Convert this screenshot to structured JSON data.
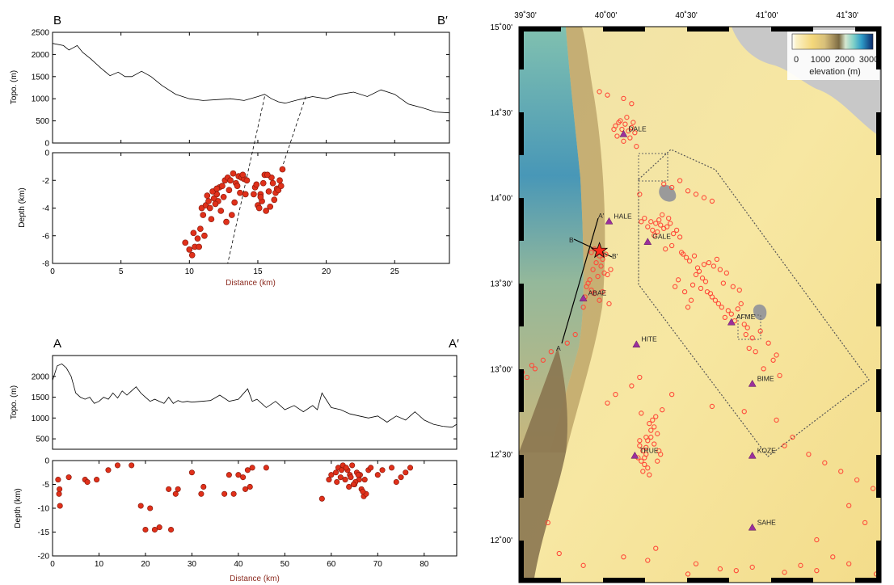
{
  "colors": {
    "event_fill": "#e0301a",
    "event_stroke": "#8a1a0d",
    "map_event": "#ff4a3a",
    "station": "#9b2f9b",
    "topo_line": "#000000"
  },
  "icons": {
    "station": "purple-triangle-icon",
    "mainshock": "star-icon"
  },
  "chart_data": [
    {
      "id": "bb-topo",
      "type": "line",
      "panel_letters": [
        "B",
        "B′"
      ],
      "xlim": [
        0,
        29
      ],
      "ylim": [
        0,
        2500
      ],
      "xticks": [
        0,
        5,
        10,
        15,
        20,
        25
      ],
      "yticks": [
        0,
        500,
        1000,
        1500,
        2000,
        2500
      ],
      "xlabel": "",
      "ylabel": "Topo. (m)",
      "series": [
        {
          "x": [
            0,
            0.8,
            1.2,
            1.5,
            1.8,
            2.2,
            2.8,
            3.5,
            4.2,
            4.8,
            5.3,
            5.8,
            6.5,
            7.2,
            8.0,
            9.0,
            10.0,
            11.0,
            12.0,
            13.0,
            14.0,
            15.0,
            15.5,
            16.0,
            16.5,
            17.0,
            18.0,
            19.0,
            20.0,
            21.0,
            22.0,
            23.0,
            24.0,
            25.0,
            26.0,
            27.0,
            28.0,
            29.0
          ],
          "y": [
            2250,
            2200,
            2100,
            2150,
            2200,
            2050,
            1900,
            1700,
            1520,
            1600,
            1500,
            1500,
            1620,
            1500,
            1300,
            1100,
            1000,
            960,
            980,
            1000,
            960,
            1050,
            1100,
            1000,
            930,
            900,
            980,
            1050,
            1000,
            1100,
            1150,
            1050,
            1200,
            1100,
            880,
            800,
            700,
            680
          ]
        }
      ],
      "dashed_lines": [
        {
          "x": [
            15.5,
            12.8
          ],
          "y": [
            1050,
            -8
          ]
        },
        {
          "x": [
            18.5,
            16.8
          ],
          "y": [
            1050,
            -1
          ]
        }
      ]
    },
    {
      "id": "bb-depth",
      "type": "scatter",
      "xlim": [
        0,
        29
      ],
      "ylim": [
        -8,
        0
      ],
      "xticks": [
        0,
        5,
        10,
        15,
        20,
        25
      ],
      "yticks": [
        0,
        -2,
        -4,
        -6,
        -8
      ],
      "xlabel": "Distance (km)",
      "ylabel": "Depth (km)",
      "series": [
        {
          "x": [
            9.7,
            10.0,
            10.2,
            10.4,
            10.6,
            10.3,
            10.8,
            11.0,
            10.9,
            11.2,
            11.5,
            11.4,
            11.8,
            12.0,
            11.7,
            12.2,
            12.4,
            12.6,
            12.1,
            12.8,
            13.0,
            12.5,
            13.2,
            13.4,
            12.9,
            13.6,
            13.8,
            13.3,
            14.0,
            13.5,
            14.2,
            13.1,
            12.7,
            12.3,
            11.9,
            11.6,
            11.3,
            13.7,
            13.9,
            14.1,
            12.0,
            11.1,
            10.7,
            14.8,
            15.0,
            15.2,
            15.4,
            15.6,
            15.8,
            16.0,
            16.2,
            16.4,
            16.6,
            16.8,
            15.1,
            15.5,
            15.9,
            16.3,
            15.3,
            14.9,
            16.1,
            16.5,
            15.7,
            14.7,
            16.7,
            15.2
          ],
          "y": [
            -6.5,
            -7.0,
            -7.4,
            -6.8,
            -6.2,
            -5.8,
            -5.5,
            -4.5,
            -4.0,
            -3.8,
            -4.0,
            -3.5,
            -3.3,
            -3.0,
            -2.8,
            -2.5,
            -2.4,
            -2.0,
            -3.5,
            -1.8,
            -2.0,
            -3.2,
            -1.5,
            -2.2,
            -2.7,
            -1.7,
            -1.8,
            -3.6,
            -1.9,
            -2.4,
            -2.0,
            -4.5,
            -5.0,
            -4.2,
            -3.7,
            -4.8,
            -3.1,
            -2.9,
            -1.6,
            -3.0,
            -2.6,
            -6.0,
            -6.8,
            -2.5,
            -3.8,
            -3.0,
            -2.2,
            -4.2,
            -2.8,
            -1.8,
            -3.4,
            -2.6,
            -2.0,
            -1.2,
            -4.0,
            -1.6,
            -3.9,
            -2.9,
            -3.5,
            -2.3,
            -2.2,
            -2.7,
            -1.6,
            -3.0,
            -2.4,
            -3.2
          ]
        }
      ]
    },
    {
      "id": "aa-topo",
      "type": "line",
      "panel_letters": [
        "A",
        "A′"
      ],
      "xlim": [
        0,
        87
      ],
      "ylim": [
        250,
        2500
      ],
      "xticks": [],
      "yticks": [
        500,
        1000,
        1500,
        2000
      ],
      "xlabel": "",
      "ylabel": "Topo. (m)",
      "series": [
        {
          "x": [
            0,
            1,
            2,
            3,
            4,
            5,
            6,
            7,
            8,
            9,
            10,
            11,
            12,
            13,
            14,
            15,
            16,
            17,
            18,
            19,
            20,
            21,
            22,
            23,
            24,
            25,
            26,
            27,
            28,
            29,
            30,
            32,
            34,
            36,
            38,
            40,
            42,
            43,
            44,
            46,
            48,
            50,
            52,
            54,
            56,
            57,
            58,
            60,
            62,
            64,
            66,
            68,
            70,
            72,
            74,
            76,
            78,
            80,
            82,
            84,
            86,
            87
          ],
          "y": [
            1900,
            2250,
            2300,
            2200,
            2000,
            1600,
            1500,
            1450,
            1500,
            1350,
            1400,
            1500,
            1450,
            1600,
            1480,
            1650,
            1550,
            1650,
            1750,
            1600,
            1500,
            1400,
            1450,
            1400,
            1350,
            1500,
            1350,
            1420,
            1380,
            1400,
            1380,
            1400,
            1420,
            1550,
            1400,
            1450,
            1700,
            1400,
            1450,
            1250,
            1400,
            1200,
            1300,
            1150,
            1300,
            1200,
            1600,
            1250,
            1200,
            1100,
            1050,
            1000,
            1050,
            900,
            1050,
            950,
            1150,
            950,
            850,
            800,
            780,
            850
          ]
        }
      ]
    },
    {
      "id": "aa-depth",
      "type": "scatter",
      "xlim": [
        0,
        87
      ],
      "ylim": [
        -20,
        0
      ],
      "xticks": [
        0,
        10,
        20,
        30,
        40,
        50,
        60,
        70,
        80
      ],
      "yticks": [
        0,
        -5,
        -10,
        -15,
        -20
      ],
      "xlabel": "Distance (km)",
      "ylabel": "Depth (km)",
      "series": [
        {
          "x": [
            1.2,
            1.5,
            1.4,
            1.6,
            3.5,
            7.0,
            7.5,
            9.5,
            12.0,
            14.0,
            17.0,
            19.0,
            20.0,
            22.0,
            21.0,
            23.0,
            25.5,
            25.0,
            26.5,
            27.0,
            30.0,
            32.0,
            32.5,
            37.0,
            38.0,
            39.0,
            40.0,
            41.0,
            42.0,
            43.0,
            42.5,
            41.5,
            46.0,
            58.0,
            59.5,
            60.0,
            61.0,
            61.5,
            62.0,
            62.5,
            63.0,
            63.5,
            64.0,
            64.5,
            65.0,
            65.5,
            66.0,
            66.5,
            67.0,
            67.5,
            68.0,
            63.2,
            64.2,
            65.2,
            66.2,
            62.2,
            61.2,
            63.8,
            64.8,
            65.8,
            66.8,
            67.2,
            68.5,
            70.0,
            71.0,
            73.0,
            74.0,
            75.0,
            76.0,
            77.0
          ],
          "y": [
            -4.0,
            -6.0,
            -7.0,
            -9.5,
            -3.5,
            -4.0,
            -4.5,
            -4.0,
            -2.0,
            -1.0,
            -1.0,
            -9.5,
            -14.5,
            -14.5,
            -10.0,
            -14.0,
            -14.5,
            -6.0,
            -7.0,
            -6.0,
            -2.5,
            -7.0,
            -5.5,
            -7.0,
            -3.0,
            -7.0,
            -3.0,
            -3.5,
            -2.0,
            -1.5,
            -5.5,
            -6.0,
            -1.5,
            -8.0,
            -4.0,
            -3.0,
            -2.5,
            -1.5,
            -3.5,
            -1.0,
            -4.0,
            -2.0,
            -3.0,
            -1.0,
            -5.0,
            -2.5,
            -4.0,
            -6.0,
            -7.5,
            -7.0,
            -2.0,
            -1.5,
            -3.5,
            -4.5,
            -3.0,
            -2.0,
            -4.5,
            -5.5,
            -5.0,
            -3.0,
            -6.5,
            -4.0,
            -1.5,
            -3.0,
            -2.0,
            -1.5,
            -4.5,
            -3.5,
            -2.5,
            -1.5
          ]
        }
      ]
    },
    {
      "id": "map",
      "type": "scatter",
      "xlim": [
        39.5,
        41.75
      ],
      "ylim": [
        11.75,
        15.0
      ],
      "xtick_labels": [
        "39˚30'",
        "40˚00'",
        "40˚30'",
        "41˚00'",
        "41˚30'"
      ],
      "ytick_labels": [
        "15˚00'",
        "14˚30'",
        "14˚00'",
        "13˚30'",
        "13˚00'",
        "12˚30'",
        "12˚00'"
      ],
      "legend": {
        "title": "elevation (m)",
        "tick_labels": [
          "0",
          "1000",
          "2000",
          "3000"
        ],
        "placement": "top-right"
      },
      "cross_section_labels": [
        "A",
        "A′",
        "B",
        "B′"
      ],
      "stations": [
        {
          "name": "DALE",
          "lon": 40.15,
          "lat": 14.37
        },
        {
          "name": "HALE",
          "lon": 40.06,
          "lat": 13.86
        },
        {
          "name": "GALE",
          "lon": 40.3,
          "lat": 13.74
        },
        {
          "name": "ABAE",
          "lon": 39.9,
          "lat": 13.41
        },
        {
          "name": "AFME",
          "lon": 40.82,
          "lat": 13.27
        },
        {
          "name": "HITE",
          "lon": 40.23,
          "lat": 13.14
        },
        {
          "name": "BIME",
          "lon": 40.95,
          "lat": 12.91
        },
        {
          "name": "TRUE",
          "lon": 40.22,
          "lat": 12.49
        },
        {
          "name": "KOZE",
          "lon": 40.95,
          "lat": 12.49
        },
        {
          "name": "SAHE",
          "lon": 40.95,
          "lat": 12.07
        }
      ],
      "mainshock": {
        "lon": 40.0,
        "lat": 13.69
      },
      "events": {
        "lon": [
          40.1,
          40.12,
          40.14,
          40.16,
          40.18,
          40.2,
          40.22,
          40.11,
          40.13,
          40.17,
          40.19,
          40.15,
          40.21,
          40.09,
          40.23,
          40.28,
          40.32,
          40.35,
          40.38,
          40.4,
          40.36,
          40.42,
          40.33,
          40.37,
          40.44,
          40.3,
          40.46,
          40.48,
          40.5,
          40.43,
          40.26,
          40.34,
          40.39,
          39.95,
          39.97,
          40.0,
          40.02,
          40.04,
          39.98,
          40.01,
          39.96,
          40.03,
          39.99,
          39.94,
          39.93,
          39.92,
          39.95,
          39.97,
          39.91,
          40.0,
          40.05,
          40.07,
          40.02,
          40.06,
          39.9,
          40.25,
          40.27,
          40.29,
          40.24,
          40.26,
          40.28,
          40.3,
          40.27,
          40.31,
          40.25,
          40.29,
          40.6,
          40.62,
          40.64,
          40.66,
          40.58,
          40.61,
          40.65,
          40.63,
          40.67,
          40.7,
          40.72,
          40.74,
          40.76,
          40.69,
          40.8,
          40.82,
          40.78,
          40.84,
          40.86,
          40.88,
          40.9,
          40.92,
          40.56,
          40.54,
          40.52,
          40.68,
          40.71,
          40.75,
          40.79,
          40.53,
          40.57,
          40.55,
          40.49,
          40.47,
          40.41,
          40.45,
          40.51,
          40.59,
          40.73,
          40.77,
          40.83,
          40.87,
          40.91,
          40.95,
          41.0,
          41.05,
          40.93,
          40.97,
          41.1,
          41.08,
          41.02,
          41.12,
          40.35,
          40.33,
          40.31,
          40.34,
          40.32,
          40.36,
          40.3,
          40.29,
          40.37,
          40.38,
          40.28,
          40.36,
          40.34,
          40.32,
          40.26,
          40.39,
          40.4,
          40.5,
          40.45,
          40.55,
          40.6,
          40.65,
          40.7,
          40.0,
          40.05,
          40.15,
          40.2,
          39.85,
          39.8,
          39.7,
          39.65,
          39.6,
          39.55,
          39.52,
          39.58,
          40.1,
          40.05,
          40.2,
          40.25,
          40.45,
          40.7,
          40.9,
          41.1,
          41.2,
          41.15,
          41.3,
          41.4,
          41.5,
          41.6,
          41.7,
          41.55,
          41.65,
          41.35,
          41.45,
          41.25,
          40.85,
          40.6,
          40.3,
          40.15,
          39.9,
          39.75,
          39.68,
          40.35,
          40.55,
          40.75,
          40.95,
          41.15,
          41.35,
          41.55,
          41.72,
          40.25
        ],
        "lat": [
          14.42,
          14.44,
          14.4,
          14.43,
          14.39,
          14.41,
          14.38,
          14.36,
          14.45,
          14.47,
          14.35,
          14.33,
          14.44,
          14.4,
          14.3,
          13.88,
          13.86,
          13.85,
          13.84,
          13.82,
          13.8,
          13.83,
          13.81,
          13.87,
          13.85,
          13.83,
          13.79,
          13.81,
          13.77,
          13.88,
          13.86,
          13.78,
          13.9,
          13.68,
          13.7,
          13.66,
          13.64,
          13.67,
          13.62,
          13.6,
          13.58,
          13.56,
          13.54,
          13.52,
          13.5,
          13.48,
          13.46,
          13.44,
          13.42,
          13.4,
          13.55,
          13.58,
          13.45,
          13.38,
          13.36,
          12.55,
          12.52,
          12.5,
          12.48,
          12.46,
          12.44,
          12.42,
          12.4,
          12.38,
          12.58,
          12.6,
          13.55,
          13.57,
          13.53,
          13.51,
          13.49,
          13.59,
          13.61,
          13.47,
          13.45,
          13.42,
          13.4,
          13.38,
          13.36,
          13.44,
          13.34,
          13.32,
          13.3,
          13.28,
          13.35,
          13.38,
          13.26,
          13.24,
          13.63,
          13.65,
          13.67,
          13.62,
          13.6,
          13.58,
          13.56,
          13.45,
          13.4,
          13.36,
          13.52,
          13.48,
          13.7,
          13.72,
          13.68,
          13.66,
          13.64,
          13.5,
          13.48,
          13.46,
          13.2,
          13.18,
          13.22,
          13.15,
          13.12,
          13.1,
          13.08,
          13.05,
          13.0,
          12.96,
          12.72,
          12.7,
          12.68,
          12.66,
          12.64,
          12.62,
          12.58,
          12.54,
          12.52,
          12.5,
          12.48,
          12.46,
          12.56,
          12.6,
          12.74,
          12.76,
          14.08,
          14.1,
          14.06,
          14.04,
          14.02,
          14.0,
          13.98,
          14.62,
          14.6,
          14.58,
          14.55,
          13.2,
          13.15,
          13.1,
          13.05,
          13.0,
          12.95,
          12.98,
          13.02,
          12.85,
          12.8,
          12.9,
          12.95,
          12.85,
          12.78,
          12.75,
          12.7,
          12.6,
          12.55,
          12.5,
          12.45,
          12.4,
          12.35,
          12.3,
          12.2,
          12.1,
          12.0,
          11.9,
          11.85,
          11.82,
          11.86,
          11.88,
          11.9,
          11.85,
          11.92,
          12.1,
          11.95,
          11.8,
          11.83,
          11.84,
          11.81,
          11.82,
          11.86,
          11.8,
          14.02
        ]
      }
    }
  ]
}
